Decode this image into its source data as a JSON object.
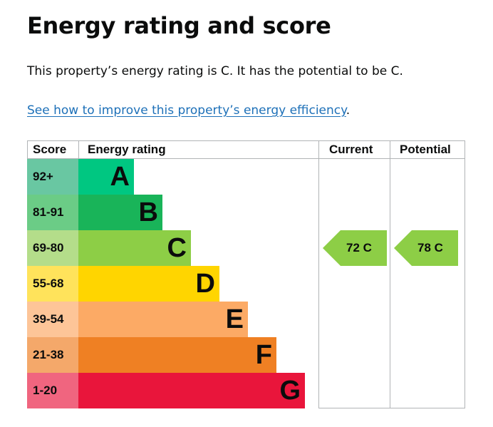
{
  "heading": "Energy rating and score",
  "summary": "This property’s energy rating is C. It has the potential to be C.",
  "improve_link": "See how to improve this property’s energy efficiency",
  "improve_link_suffix": ".",
  "table": {
    "headers": {
      "score": "Score",
      "rating": "Energy rating",
      "current": "Current",
      "potential": "Potential"
    },
    "bands": [
      {
        "score": "92+",
        "letter": "A",
        "color": "#00c781",
        "score_bg": "#69c7a2"
      },
      {
        "score": "81-91",
        "letter": "B",
        "color": "#19b459",
        "score_bg": "#6bcc86"
      },
      {
        "score": "69-80",
        "letter": "C",
        "color": "#8dce46",
        "score_bg": "#b4dd8a"
      },
      {
        "score": "55-68",
        "letter": "D",
        "color": "#ffd500",
        "score_bg": "#ffe35b"
      },
      {
        "score": "39-54",
        "letter": "E",
        "color": "#fcaa65",
        "score_bg": "#fdc598"
      },
      {
        "score": "21-38",
        "letter": "F",
        "color": "#ef8023",
        "score_bg": "#f4a86a"
      },
      {
        "score": "1-20",
        "letter": "G",
        "color": "#e9153b",
        "score_bg": "#f0657f"
      }
    ],
    "current": {
      "label": "72  C",
      "band": "C",
      "color": "#8dce46"
    },
    "potential": {
      "label": "78  C",
      "band": "C",
      "color": "#8dce46"
    }
  }
}
